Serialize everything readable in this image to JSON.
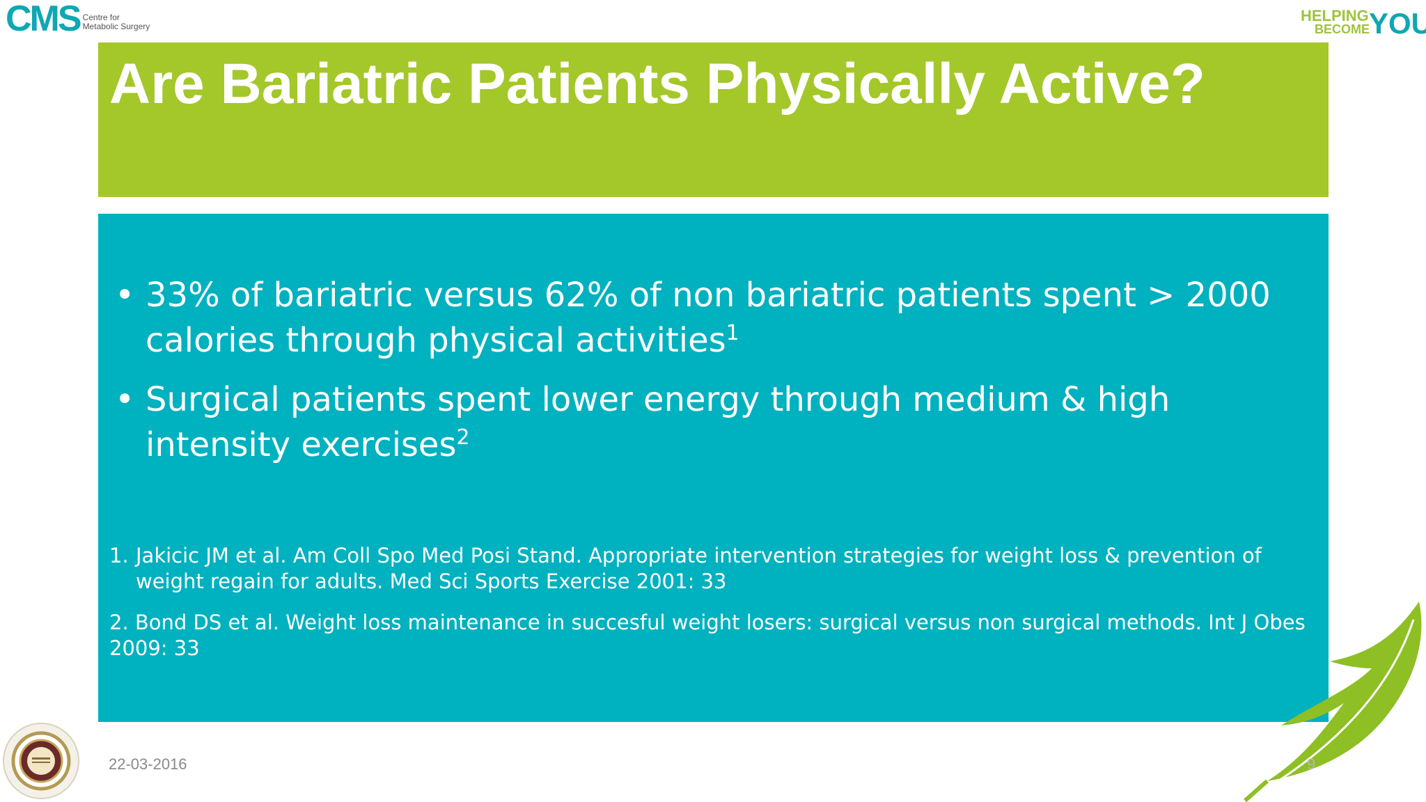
{
  "header": {
    "left_logo": {
      "mark": "CMS",
      "line1": "Centre for",
      "line2": "Metabolic Surgery"
    },
    "right_logo": {
      "word1": "HELPING",
      "word2": "BECOME",
      "word3": "YOU"
    }
  },
  "slide": {
    "title": "Are Bariatric Patients Physically Active?",
    "bullets": [
      {
        "text": "33% of bariatric versus 62% of non bariatric patients spent > 2000 calories through physical activities",
        "sup": "1"
      },
      {
        "text": "Surgical patients spent lower energy through medium & high intensity exercises",
        "sup": "2"
      }
    ],
    "references": [
      {
        "number": "1.",
        "text": "Jakicic JM et al. Am Coll Spo Med Posi Stand. Appropriate intervention strategies for weight loss & prevention of weight regain for adults. Med Sci Sports Exercise 2001: 33"
      },
      {
        "text": "2. Bond DS et al. Weight loss maintenance in succesful weight losers: surgical versus non surgical methods. Int J Obes 2009: 33"
      }
    ]
  },
  "footer": {
    "date": "22-03-2016",
    "page_number": "9"
  },
  "colors": {
    "title_band": "#a4c72a",
    "content_band": "#00b1bf",
    "brand_teal": "#0fa7b3"
  },
  "icons": {
    "seal": "institution-seal-icon",
    "leaf": "leaf-icon"
  }
}
